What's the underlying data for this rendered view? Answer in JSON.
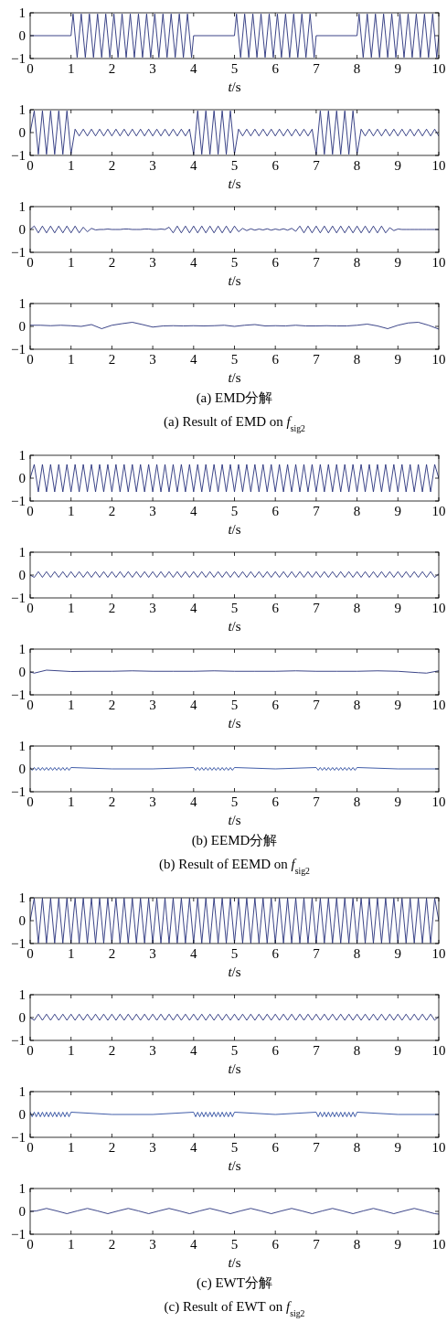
{
  "chart_data": [
    {
      "type": "line",
      "color": "#26307a",
      "xlabel": "*t*/s",
      "xlim": [
        0,
        10
      ],
      "ylim": [
        -1,
        1
      ],
      "xticks": [
        0,
        1,
        2,
        3,
        4,
        5,
        6,
        7,
        8,
        9,
        10
      ],
      "yticks": [
        -1,
        0,
        1
      ],
      "x": [
        0,
        1,
        1.05,
        1.15,
        1.25,
        1.35,
        1.45,
        1.55,
        1.65,
        1.75,
        1.85,
        1.95,
        2.05,
        2.15,
        2.25,
        2.35,
        2.45,
        2.55,
        2.65,
        2.75,
        2.85,
        2.95,
        3.05,
        3.15,
        3.25,
        3.35,
        3.45,
        3.55,
        3.65,
        3.75,
        3.85,
        3.95,
        4,
        5,
        5.05,
        5.15,
        5.25,
        5.35,
        5.45,
        5.55,
        5.65,
        5.75,
        5.85,
        5.95,
        6.05,
        6.15,
        6.25,
        6.35,
        6.45,
        6.55,
        6.65,
        6.75,
        6.85,
        6.95,
        7,
        8,
        8.05,
        8.15,
        8.25,
        8.35,
        8.45,
        8.55,
        8.65,
        8.75,
        8.85,
        8.95,
        9.05,
        9.15,
        9.25,
        9.35,
        9.45,
        9.55,
        9.65,
        9.75,
        9.85,
        9.95,
        10
      ],
      "values": [
        0,
        0,
        0.95,
        -0.95,
        0.95,
        -0.95,
        0.95,
        -0.95,
        0.95,
        -0.95,
        0.95,
        -0.95,
        0.95,
        -0.95,
        0.95,
        -0.95,
        0.95,
        -0.95,
        0.95,
        -0.95,
        0.95,
        -0.95,
        0.95,
        -0.95,
        0.95,
        -0.95,
        0.95,
        -0.95,
        0.95,
        -0.95,
        0.95,
        -0.95,
        0,
        0,
        0.95,
        -0.95,
        0.95,
        -0.95,
        0.95,
        -0.95,
        0.95,
        -0.95,
        0.95,
        -0.95,
        0.95,
        -0.95,
        0.95,
        -0.95,
        0.95,
        -0.95,
        0.95,
        -0.95,
        0.95,
        -0.95,
        0,
        0,
        0.95,
        -0.95,
        0.95,
        -0.95,
        0.95,
        -0.95,
        0.95,
        -0.95,
        0.95,
        -0.95,
        0.95,
        -0.95,
        0.95,
        -0.95,
        0.95,
        -0.95,
        0.95,
        -0.95,
        0.95,
        -0.95,
        0
      ]
    },
    {
      "type": "line",
      "color": "#26307a",
      "xlabel": "*t*/s",
      "xlim": [
        0,
        10
      ],
      "ylim": [
        -1,
        1
      ],
      "xticks": [
        0,
        1,
        2,
        3,
        4,
        5,
        6,
        7,
        8,
        9,
        10
      ],
      "yticks": [
        -1,
        0,
        1
      ],
      "x": [
        0,
        0.1,
        0.2,
        0.3,
        0.4,
        0.5,
        0.6,
        0.7,
        0.8,
        0.9,
        1,
        1.1,
        1.2,
        1.3,
        1.4,
        1.5,
        1.6,
        1.7,
        1.8,
        1.9,
        2,
        2.1,
        2.2,
        2.3,
        2.4,
        2.5,
        2.6,
        2.7,
        2.8,
        2.9,
        3,
        3.1,
        3.2,
        3.3,
        3.4,
        3.5,
        3.6,
        3.7,
        3.8,
        3.9,
        4,
        4.1,
        4.2,
        4.3,
        4.4,
        4.5,
        4.6,
        4.7,
        4.8,
        4.9,
        5,
        5.1,
        5.2,
        5.3,
        5.4,
        5.5,
        5.6,
        5.7,
        5.8,
        5.9,
        6,
        6.1,
        6.2,
        6.3,
        6.4,
        6.5,
        6.6,
        6.7,
        6.8,
        6.9,
        7,
        7.1,
        7.2,
        7.3,
        7.4,
        7.5,
        7.6,
        7.7,
        7.8,
        7.9,
        8,
        8.1,
        8.2,
        8.3,
        8.4,
        8.5,
        8.6,
        8.7,
        8.8,
        8.9,
        9,
        9.1,
        9.2,
        9.3,
        9.4,
        9.5,
        9.6,
        9.7,
        9.8,
        9.9,
        10
      ],
      "values": [
        0,
        0.95,
        -0.95,
        0.95,
        -0.95,
        0.95,
        -0.95,
        0.95,
        -0.95,
        0.95,
        -0.95,
        0.15,
        -0.15,
        0.15,
        -0.15,
        0.15,
        -0.15,
        0.15,
        -0.15,
        0.15,
        -0.15,
        0.15,
        -0.15,
        0.15,
        -0.15,
        0.15,
        -0.15,
        0.15,
        -0.15,
        0.15,
        -0.15,
        0.15,
        -0.15,
        0.15,
        -0.15,
        0.15,
        -0.15,
        0.15,
        -0.15,
        0.15,
        -0.95,
        0.95,
        -0.95,
        0.95,
        -0.95,
        0.95,
        -0.95,
        0.95,
        -0.95,
        0.95,
        -0.95,
        0.15,
        -0.15,
        0.15,
        -0.15,
        0.15,
        -0.15,
        0.15,
        -0.15,
        0.15,
        -0.15,
        0.15,
        -0.15,
        0.15,
        -0.15,
        0.15,
        -0.15,
        0.15,
        -0.15,
        0.15,
        -0.95,
        0.95,
        -0.95,
        0.95,
        -0.95,
        0.95,
        -0.95,
        0.95,
        -0.95,
        0.95,
        -0.95,
        0.15,
        -0.15,
        0.15,
        -0.15,
        0.15,
        -0.15,
        0.15,
        -0.15,
        0.15,
        -0.15,
        0.15,
        -0.15,
        0.15,
        -0.15,
        0.15,
        -0.15,
        0.15,
        -0.15,
        0.15,
        -0.15
      ]
    },
    {
      "type": "line",
      "color": "#26307a",
      "xlabel": "*t*/s",
      "xlim": [
        0,
        10
      ],
      "ylim": [
        -1,
        1
      ],
      "xticks": [
        0,
        1,
        2,
        3,
        4,
        5,
        6,
        7,
        8,
        9,
        10
      ],
      "yticks": [
        -1,
        0,
        1
      ],
      "x": [
        0,
        0.1,
        0.2,
        0.3,
        0.4,
        0.5,
        0.6,
        0.7,
        0.8,
        0.9,
        1,
        1.1,
        1.2,
        1.3,
        1.4,
        1.5,
        1.6,
        1.7,
        1.8,
        1.9,
        2,
        2.1,
        2.2,
        2.3,
        2.4,
        2.5,
        2.6,
        2.7,
        2.8,
        2.9,
        3,
        3.1,
        3.2,
        3.3,
        3.4,
        3.5,
        3.6,
        3.7,
        3.8,
        3.9,
        4,
        4.1,
        4.2,
        4.3,
        4.4,
        4.5,
        4.6,
        4.7,
        4.8,
        4.9,
        5,
        5.1,
        5.2,
        5.3,
        5.4,
        5.5,
        5.6,
        5.7,
        5.8,
        5.9,
        6,
        6.1,
        6.2,
        6.3,
        6.4,
        6.5,
        6.6,
        6.7,
        6.8,
        6.9,
        7,
        7.1,
        7.2,
        7.3,
        7.4,
        7.5,
        7.6,
        7.7,
        7.8,
        7.9,
        8,
        8.1,
        8.2,
        8.3,
        8.4,
        8.5,
        8.6,
        8.7,
        8.8,
        8.9,
        9,
        9.1,
        9.2,
        9.3,
        9.4,
        9.5,
        9.6,
        9.7,
        9.8,
        9.9,
        10
      ],
      "values": [
        0,
        0.15,
        -0.15,
        0.15,
        -0.15,
        0.15,
        -0.15,
        0.15,
        -0.15,
        0.15,
        -0.15,
        0.15,
        -0.15,
        0.1,
        -0.1,
        0.05,
        -0.02,
        0,
        0,
        0.02,
        0,
        0,
        0,
        0.02,
        0.02,
        0,
        0,
        0,
        0.02,
        0.02,
        0,
        0,
        0.02,
        0,
        0.1,
        -0.15,
        0.15,
        -0.15,
        0.15,
        -0.15,
        0.15,
        -0.15,
        0.15,
        -0.15,
        0.15,
        -0.15,
        0.15,
        -0.15,
        0.15,
        -0.15,
        0.15,
        -0.1,
        0.05,
        -0.05,
        0.03,
        -0.03,
        0.02,
        -0.02,
        0.03,
        -0.03,
        0.02,
        -0.02,
        0.03,
        -0.03,
        0.05,
        -0.08,
        0.15,
        -0.15,
        0.15,
        -0.15,
        0.15,
        -0.15,
        0.15,
        -0.15,
        0.15,
        -0.15,
        0.15,
        -0.15,
        0.15,
        -0.15,
        0.15,
        -0.15,
        0.15,
        -0.15,
        0.15,
        -0.15,
        0.15,
        -0.15,
        0.08,
        -0.05,
        0.02,
        0,
        0,
        0,
        0,
        0,
        0,
        0,
        0,
        0,
        0
      ]
    },
    {
      "type": "line",
      "color": "#26307a",
      "xlabel": "*t*/s",
      "xlim": [
        0,
        10
      ],
      "ylim": [
        -1,
        1
      ],
      "xticks": [
        0,
        1,
        2,
        3,
        4,
        5,
        6,
        7,
        8,
        9,
        10
      ],
      "yticks": [
        -1,
        0,
        1
      ],
      "annotations": [
        "(a) EMD分解",
        "(a) Result of EMD on *f*$_{sig2}$"
      ],
      "x": [
        0,
        0.25,
        0.5,
        0.75,
        1,
        1.25,
        1.5,
        1.75,
        2,
        2.25,
        2.5,
        2.75,
        3,
        3.25,
        3.5,
        3.75,
        4,
        4.25,
        4.5,
        4.75,
        5,
        5.25,
        5.5,
        5.75,
        6,
        6.25,
        6.5,
        6.75,
        7,
        7.25,
        7.5,
        7.75,
        8,
        8.25,
        8.5,
        8.75,
        9,
        9.25,
        9.5,
        9.75,
        10
      ],
      "values": [
        0.05,
        0.05,
        0.03,
        0.05,
        0.03,
        0,
        0.08,
        -0.1,
        0.05,
        0.12,
        0.18,
        0.08,
        -0.03,
        0.02,
        0.03,
        0.02,
        0.03,
        0.02,
        0.03,
        0.05,
        0,
        0.05,
        0.08,
        0.02,
        0.03,
        0.02,
        0.05,
        0.02,
        0.02,
        0.03,
        0.02,
        0.02,
        0.05,
        0.1,
        0.02,
        -0.1,
        0.05,
        0.15,
        0.18,
        0.05,
        -0.12
      ]
    },
    {
      "type": "line",
      "color": "#26307a",
      "xlabel": "*t*/s",
      "xlim": [
        0,
        10
      ],
      "ylim": [
        -1,
        1
      ],
      "xticks": [
        0,
        1,
        2,
        3,
        4,
        5,
        6,
        7,
        8,
        9,
        10
      ],
      "yticks": [
        -1,
        0,
        1
      ],
      "x": [
        0,
        0.1,
        0.2,
        0.3,
        0.4,
        0.5,
        0.6,
        0.7,
        0.8,
        0.9,
        1,
        1.1,
        1.2,
        1.3,
        1.4,
        1.5,
        1.6,
        1.7,
        1.8,
        1.9,
        2,
        2.1,
        2.2,
        2.3,
        2.4,
        2.5,
        2.6,
        2.7,
        2.8,
        2.9,
        3,
        3.1,
        3.2,
        3.3,
        3.4,
        3.5,
        3.6,
        3.7,
        3.8,
        3.9,
        4,
        4.1,
        4.2,
        4.3,
        4.4,
        4.5,
        4.6,
        4.7,
        4.8,
        4.9,
        5,
        5.1,
        5.2,
        5.3,
        5.4,
        5.5,
        5.6,
        5.7,
        5.8,
        5.9,
        6,
        6.1,
        6.2,
        6.3,
        6.4,
        6.5,
        6.6,
        6.7,
        6.8,
        6.9,
        7,
        7.1,
        7.2,
        7.3,
        7.4,
        7.5,
        7.6,
        7.7,
        7.8,
        7.9,
        8,
        8.1,
        8.2,
        8.3,
        8.4,
        8.5,
        8.6,
        8.7,
        8.8,
        8.9,
        9,
        9.1,
        9.2,
        9.3,
        9.4,
        9.5,
        9.6,
        9.7,
        9.8,
        9.9,
        10
      ],
      "values": [
        0,
        0.6,
        -0.6,
        0.6,
        -0.6,
        0.6,
        -0.6,
        0.6,
        -0.6,
        0.6,
        -0.6,
        0.6,
        -0.6,
        0.6,
        -0.6,
        0.6,
        -0.6,
        0.6,
        -0.6,
        0.6,
        -0.6,
        0.6,
        -0.6,
        0.6,
        -0.6,
        0.6,
        -0.6,
        0.6,
        -0.6,
        0.6,
        -0.6,
        0.6,
        -0.6,
        0.6,
        -0.6,
        0.6,
        -0.6,
        0.6,
        -0.6,
        0.6,
        -0.6,
        0.6,
        -0.6,
        0.6,
        -0.6,
        0.6,
        -0.6,
        0.6,
        -0.6,
        0.6,
        -0.6,
        0.6,
        -0.6,
        0.6,
        -0.6,
        0.6,
        -0.6,
        0.6,
        -0.6,
        0.6,
        -0.6,
        0.6,
        -0.6,
        0.6,
        -0.6,
        0.6,
        -0.6,
        0.6,
        -0.6,
        0.6,
        -0.6,
        0.6,
        -0.6,
        0.6,
        -0.6,
        0.6,
        -0.6,
        0.6,
        -0.6,
        0.6,
        -0.6,
        0.6,
        -0.6,
        0.6,
        -0.6,
        0.6,
        -0.6,
        0.6,
        -0.6,
        0.6,
        -0.6,
        0.6,
        -0.6,
        0.6,
        -0.6,
        0.6,
        -0.6,
        0.6,
        -0.6,
        0.6,
        0
      ]
    },
    {
      "type": "line",
      "color": "#26307a",
      "xlabel": "*t*/s",
      "xlim": [
        0,
        10
      ],
      "ylim": [
        -1,
        1
      ],
      "xticks": [
        0,
        1,
        2,
        3,
        4,
        5,
        6,
        7,
        8,
        9,
        10
      ],
      "yticks": [
        -1,
        0,
        1
      ],
      "x": [
        0,
        0.1,
        0.2,
        0.3,
        0.4,
        0.5,
        0.6,
        0.7,
        0.8,
        0.9,
        1,
        1.1,
        1.2,
        1.3,
        1.4,
        1.5,
        1.6,
        1.7,
        1.8,
        1.9,
        2,
        2.1,
        2.2,
        2.3,
        2.4,
        2.5,
        2.6,
        2.7,
        2.8,
        2.9,
        3,
        3.1,
        3.2,
        3.3,
        3.4,
        3.5,
        3.6,
        3.7,
        3.8,
        3.9,
        4,
        4.1,
        4.2,
        4.3,
        4.4,
        4.5,
        4.6,
        4.7,
        4.8,
        4.9,
        5,
        5.1,
        5.2,
        5.3,
        5.4,
        5.5,
        5.6,
        5.7,
        5.8,
        5.9,
        6,
        6.1,
        6.2,
        6.3,
        6.4,
        6.5,
        6.6,
        6.7,
        6.8,
        6.9,
        7,
        7.1,
        7.2,
        7.3,
        7.4,
        7.5,
        7.6,
        7.7,
        7.8,
        7.9,
        8,
        8.1,
        8.2,
        8.3,
        8.4,
        8.5,
        8.6,
        8.7,
        8.8,
        8.9,
        9,
        9.1,
        9.2,
        9.3,
        9.4,
        9.5,
        9.6,
        9.7,
        9.8,
        9.9,
        10
      ],
      "values": [
        0,
        -0.1,
        0.15,
        -0.1,
        0.15,
        -0.1,
        0.15,
        -0.1,
        0.15,
        -0.1,
        0.15,
        -0.1,
        0.15,
        -0.1,
        0.15,
        -0.1,
        0.15,
        -0.1,
        0.15,
        -0.1,
        0.15,
        -0.1,
        0.15,
        -0.1,
        0.15,
        -0.1,
        0.15,
        -0.1,
        0.15,
        -0.1,
        0.15,
        -0.1,
        0.15,
        -0.1,
        0.15,
        -0.1,
        0.15,
        -0.1,
        0.15,
        -0.1,
        0.15,
        -0.1,
        0.15,
        -0.1,
        0.15,
        -0.1,
        0.15,
        -0.1,
        0.15,
        -0.1,
        0.15,
        -0.1,
        0.15,
        -0.1,
        0.15,
        -0.1,
        0.15,
        -0.1,
        0.15,
        -0.1,
        0.15,
        -0.1,
        0.15,
        -0.1,
        0.15,
        -0.1,
        0.15,
        -0.1,
        0.15,
        -0.1,
        0.15,
        -0.1,
        0.15,
        -0.1,
        0.15,
        -0.1,
        0.15,
        -0.1,
        0.15,
        -0.1,
        0.15,
        -0.1,
        0.15,
        -0.1,
        0.15,
        -0.1,
        0.15,
        -0.1,
        0.15,
        -0.1,
        0.15,
        -0.1,
        0.15,
        -0.1,
        0.15,
        -0.1,
        0.15,
        -0.1,
        0.15,
        -0.1,
        0.05
      ]
    },
    {
      "type": "line",
      "color": "#26307a",
      "xlabel": "*t*/s",
      "xlim": [
        0,
        10
      ],
      "ylim": [
        -1,
        1
      ],
      "xticks": [
        0,
        1,
        2,
        3,
        4,
        5,
        6,
        7,
        8,
        9,
        10
      ],
      "yticks": [
        -1,
        0,
        1
      ],
      "x": [
        0,
        0.1,
        0.4,
        1,
        1.5,
        2,
        2.5,
        3,
        3.5,
        4,
        4.5,
        5,
        5.5,
        6,
        6.5,
        7,
        7.5,
        8,
        8.5,
        9,
        9.5,
        9.7,
        10
      ],
      "values": [
        0,
        -0.05,
        0.08,
        0.02,
        0.03,
        0.03,
        0.05,
        0.03,
        0.03,
        0.03,
        0.05,
        0.03,
        0.03,
        0.03,
        0.05,
        0.03,
        0.03,
        0.03,
        0.05,
        0.03,
        -0.03,
        -0.05,
        0.05
      ]
    },
    {
      "type": "line",
      "color": "#2a4a9e",
      "xlabel": "*t*/s",
      "xlim": [
        0,
        10
      ],
      "ylim": [
        -1,
        1
      ],
      "xticks": [
        0,
        1,
        2,
        3,
        4,
        5,
        6,
        7,
        8,
        9,
        10
      ],
      "yticks": [
        -1,
        0,
        1
      ],
      "annotations": [
        "(b) EEMD分解",
        "(b) Result of EEMD on *f*$_{sig2}$"
      ],
      "x": [
        0,
        0.05,
        0.1,
        0.15,
        0.2,
        0.25,
        0.3,
        0.35,
        0.4,
        0.45,
        0.5,
        0.55,
        0.6,
        0.65,
        0.7,
        0.75,
        0.8,
        0.85,
        0.9,
        0.95,
        1,
        2,
        3,
        4,
        4.05,
        4.1,
        4.15,
        4.2,
        4.25,
        4.3,
        4.35,
        4.4,
        4.45,
        4.5,
        4.55,
        4.6,
        4.65,
        4.7,
        4.75,
        4.8,
        4.85,
        4.9,
        4.95,
        5,
        6,
        7,
        7.05,
        7.1,
        7.15,
        7.2,
        7.25,
        7.3,
        7.35,
        7.4,
        7.45,
        7.5,
        7.55,
        7.6,
        7.65,
        7.7,
        7.75,
        7.8,
        7.85,
        7.9,
        7.95,
        8,
        9,
        10
      ],
      "values": [
        0.06,
        -0.06,
        0.06,
        -0.06,
        0.06,
        -0.06,
        0.06,
        -0.06,
        0.06,
        -0.06,
        0.06,
        -0.06,
        0.06,
        -0.06,
        0.06,
        -0.06,
        0.06,
        -0.06,
        0.06,
        -0.06,
        0.06,
        0,
        0,
        0.06,
        -0.06,
        0.06,
        -0.06,
        0.06,
        -0.06,
        0.06,
        -0.06,
        0.06,
        -0.06,
        0.06,
        -0.06,
        0.06,
        -0.06,
        0.06,
        -0.06,
        0.06,
        -0.06,
        0.06,
        -0.06,
        0.06,
        0,
        0.06,
        -0.06,
        0.06,
        -0.06,
        0.06,
        -0.06,
        0.06,
        -0.06,
        0.06,
        -0.06,
        0.06,
        -0.06,
        0.06,
        -0.06,
        0.06,
        -0.06,
        0.06,
        -0.06,
        0.06,
        -0.06,
        0.06,
        0,
        0
      ]
    },
    {
      "type": "line",
      "color": "#26307a",
      "xlabel": "*t*/s",
      "xlim": [
        0,
        10
      ],
      "ylim": [
        -1,
        1
      ],
      "xticks": [
        0,
        1,
        2,
        3,
        4,
        5,
        6,
        7,
        8,
        9,
        10
      ],
      "yticks": [
        -1,
        0,
        1
      ],
      "x": [
        0,
        0.1,
        0.2,
        0.3,
        0.4,
        0.5,
        0.6,
        0.7,
        0.8,
        0.9,
        1,
        1.1,
        1.2,
        1.3,
        1.4,
        1.5,
        1.6,
        1.7,
        1.8,
        1.9,
        2,
        2.1,
        2.2,
        2.3,
        2.4,
        2.5,
        2.6,
        2.7,
        2.8,
        2.9,
        3,
        3.1,
        3.2,
        3.3,
        3.4,
        3.5,
        3.6,
        3.7,
        3.8,
        3.9,
        4,
        4.1,
        4.2,
        4.3,
        4.4,
        4.5,
        4.6,
        4.7,
        4.8,
        4.9,
        5,
        5.1,
        5.2,
        5.3,
        5.4,
        5.5,
        5.6,
        5.7,
        5.8,
        5.9,
        6,
        6.1,
        6.2,
        6.3,
        6.4,
        6.5,
        6.6,
        6.7,
        6.8,
        6.9,
        7,
        7.1,
        7.2,
        7.3,
        7.4,
        7.5,
        7.6,
        7.7,
        7.8,
        7.9,
        8,
        8.1,
        8.2,
        8.3,
        8.4,
        8.5,
        8.6,
        8.7,
        8.8,
        8.9,
        9,
        9.1,
        9.2,
        9.3,
        9.4,
        9.5,
        9.6,
        9.7,
        9.8,
        9.9,
        10
      ],
      "values": [
        0,
        0.98,
        -0.98,
        0.98,
        -0.98,
        0.98,
        -0.98,
        0.98,
        -0.98,
        0.98,
        -0.98,
        0.98,
        -0.98,
        0.98,
        -0.98,
        0.98,
        -0.98,
        0.98,
        -0.98,
        0.98,
        -0.98,
        0.98,
        -0.98,
        0.98,
        -0.98,
        0.98,
        -0.98,
        0.98,
        -0.98,
        0.98,
        -0.98,
        0.98,
        -0.98,
        0.98,
        -0.98,
        0.98,
        -0.98,
        0.98,
        -0.98,
        0.98,
        -0.98,
        0.98,
        -0.98,
        0.98,
        -0.98,
        0.98,
        -0.98,
        0.98,
        -0.98,
        0.98,
        -0.98,
        0.98,
        -0.98,
        0.98,
        -0.98,
        0.98,
        -0.98,
        0.98,
        -0.98,
        0.98,
        -0.98,
        0.98,
        -0.98,
        0.98,
        -0.98,
        0.98,
        -0.98,
        0.98,
        -0.98,
        0.98,
        -0.98,
        0.98,
        -0.98,
        0.98,
        -0.98,
        0.98,
        -0.98,
        0.98,
        -0.98,
        0.98,
        -0.98,
        0.98,
        -0.98,
        0.98,
        -0.98,
        0.98,
        -0.98,
        0.98,
        -0.98,
        0.98,
        -0.98,
        0.98,
        -0.98,
        0.98,
        -0.98,
        0.98,
        -0.98,
        0.98,
        -0.98,
        0.98,
        0
      ]
    },
    {
      "type": "line",
      "color": "#26307a",
      "xlabel": "*t*/s",
      "xlim": [
        0,
        10
      ],
      "ylim": [
        -1,
        1
      ],
      "xticks": [
        0,
        1,
        2,
        3,
        4,
        5,
        6,
        7,
        8,
        9,
        10
      ],
      "yticks": [
        -1,
        0,
        1
      ],
      "x": [
        0,
        0.1,
        0.2,
        0.3,
        0.4,
        0.5,
        0.6,
        0.7,
        0.8,
        0.9,
        1,
        1.1,
        1.2,
        1.3,
        1.4,
        1.5,
        1.6,
        1.7,
        1.8,
        1.9,
        2,
        2.1,
        2.2,
        2.3,
        2.4,
        2.5,
        2.6,
        2.7,
        2.8,
        2.9,
        3,
        3.1,
        3.2,
        3.3,
        3.4,
        3.5,
        3.6,
        3.7,
        3.8,
        3.9,
        4,
        4.1,
        4.2,
        4.3,
        4.4,
        4.5,
        4.6,
        4.7,
        4.8,
        4.9,
        5,
        5.1,
        5.2,
        5.3,
        5.4,
        5.5,
        5.6,
        5.7,
        5.8,
        5.9,
        6,
        6.1,
        6.2,
        6.3,
        6.4,
        6.5,
        6.6,
        6.7,
        6.8,
        6.9,
        7,
        7.1,
        7.2,
        7.3,
        7.4,
        7.5,
        7.6,
        7.7,
        7.8,
        7.9,
        8,
        8.1,
        8.2,
        8.3,
        8.4,
        8.5,
        8.6,
        8.7,
        8.8,
        8.9,
        9,
        9.1,
        9.2,
        9.3,
        9.4,
        9.5,
        9.6,
        9.7,
        9.8,
        9.9,
        10
      ],
      "values": [
        0,
        -0.12,
        0.15,
        -0.12,
        0.15,
        -0.12,
        0.15,
        -0.12,
        0.15,
        -0.12,
        0.15,
        -0.12,
        0.15,
        -0.12,
        0.15,
        -0.12,
        0.15,
        -0.12,
        0.15,
        -0.12,
        0.15,
        -0.12,
        0.15,
        -0.12,
        0.15,
        -0.12,
        0.15,
        -0.12,
        0.15,
        -0.12,
        0.15,
        -0.12,
        0.15,
        -0.12,
        0.15,
        -0.12,
        0.15,
        -0.12,
        0.15,
        -0.12,
        0.15,
        -0.12,
        0.15,
        -0.12,
        0.15,
        -0.12,
        0.15,
        -0.12,
        0.15,
        -0.12,
        0.15,
        -0.12,
        0.15,
        -0.12,
        0.15,
        -0.12,
        0.15,
        -0.12,
        0.15,
        -0.12,
        0.15,
        -0.12,
        0.15,
        -0.12,
        0.15,
        -0.12,
        0.15,
        -0.12,
        0.15,
        -0.12,
        0.15,
        -0.12,
        0.15,
        -0.12,
        0.15,
        -0.12,
        0.15,
        -0.12,
        0.15,
        -0.12,
        0.15,
        -0.12,
        0.15,
        -0.12,
        0.15,
        -0.12,
        0.15,
        -0.12,
        0.15,
        -0.12,
        0.15,
        -0.12,
        0.15,
        -0.12,
        0.15,
        -0.12,
        0.15,
        -0.12,
        0.15,
        -0.12,
        0.05
      ]
    },
    {
      "type": "line",
      "color": "#2a4a9e",
      "xlabel": "*t*/s",
      "xlim": [
        0,
        10
      ],
      "ylim": [
        -1,
        1
      ],
      "xticks": [
        0,
        1,
        2,
        3,
        4,
        5,
        6,
        7,
        8,
        9,
        10
      ],
      "yticks": [
        -1,
        0,
        1
      ],
      "x": [
        0,
        0.05,
        0.1,
        0.15,
        0.2,
        0.25,
        0.3,
        0.35,
        0.4,
        0.45,
        0.5,
        0.55,
        0.6,
        0.65,
        0.7,
        0.75,
        0.8,
        0.85,
        0.9,
        0.95,
        1,
        2,
        3,
        4,
        4.05,
        4.1,
        4.15,
        4.2,
        4.25,
        4.3,
        4.35,
        4.4,
        4.45,
        4.5,
        4.55,
        4.6,
        4.65,
        4.7,
        4.75,
        4.8,
        4.85,
        4.9,
        4.95,
        5,
        6,
        7,
        7.05,
        7.1,
        7.15,
        7.2,
        7.25,
        7.3,
        7.35,
        7.4,
        7.45,
        7.5,
        7.55,
        7.6,
        7.65,
        7.7,
        7.75,
        7.8,
        7.85,
        7.9,
        7.95,
        8,
        9,
        10
      ],
      "values": [
        0.1,
        -0.1,
        0.1,
        -0.1,
        0.1,
        -0.1,
        0.1,
        -0.1,
        0.1,
        -0.1,
        0.1,
        -0.1,
        0.1,
        -0.1,
        0.1,
        -0.1,
        0.1,
        -0.1,
        0.1,
        -0.1,
        0.1,
        0,
        0,
        0.1,
        -0.1,
        0.1,
        -0.1,
        0.1,
        -0.1,
        0.1,
        -0.1,
        0.1,
        -0.1,
        0.1,
        -0.1,
        0.1,
        -0.1,
        0.1,
        -0.1,
        0.1,
        -0.1,
        0.1,
        -0.1,
        0.1,
        0,
        0.1,
        -0.1,
        0.1,
        -0.1,
        0.1,
        -0.1,
        0.1,
        -0.1,
        0.1,
        -0.1,
        0.1,
        -0.1,
        0.1,
        -0.1,
        0.1,
        -0.1,
        0.1,
        -0.1,
        0.1,
        -0.1,
        0.1,
        0,
        0
      ]
    },
    {
      "type": "line",
      "color": "#26307a",
      "xlabel": "*t*/s",
      "xlim": [
        0,
        10
      ],
      "ylim": [
        -1,
        1
      ],
      "xticks": [
        0,
        1,
        2,
        3,
        4,
        5,
        6,
        7,
        8,
        9,
        10
      ],
      "yticks": [
        -1,
        0,
        1
      ],
      "annotations": [
        "(c) EWT分解",
        "(c) Result of EWT on *f*$_{sig2}$"
      ],
      "x": [
        0,
        0.15,
        0.4,
        0.65,
        0.9,
        1.15,
        1.4,
        1.65,
        1.9,
        2.15,
        2.4,
        2.65,
        2.9,
        3.15,
        3.4,
        3.65,
        3.9,
        4.15,
        4.4,
        4.65,
        4.9,
        5.15,
        5.4,
        5.65,
        5.9,
        6.15,
        6.4,
        6.65,
        6.9,
        7.15,
        7.4,
        7.65,
        7.9,
        8.15,
        8.4,
        8.65,
        8.9,
        9.15,
        9.4,
        9.65,
        9.9,
        10
      ],
      "values": [
        0,
        0.02,
        0.13,
        0.02,
        -0.1,
        0.02,
        0.13,
        0.02,
        -0.1,
        0.02,
        0.13,
        0.02,
        -0.1,
        0.02,
        0.13,
        0.02,
        -0.1,
        0.02,
        0.13,
        0.02,
        -0.1,
        0.02,
        0.13,
        0.02,
        -0.1,
        0.02,
        0.13,
        0.02,
        -0.1,
        0.02,
        0.13,
        0.02,
        -0.1,
        0.02,
        0.13,
        0.02,
        -0.1,
        0.02,
        0.13,
        0.02,
        -0.1,
        -0.12
      ]
    }
  ]
}
